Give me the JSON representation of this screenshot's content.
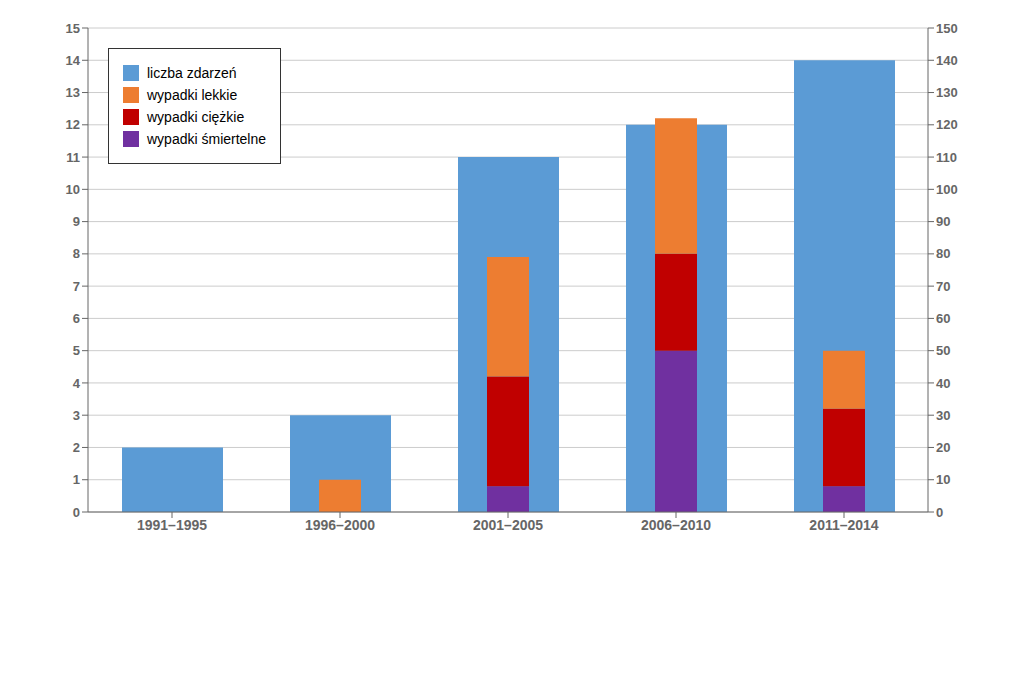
{
  "chart_data": {
    "type": "bar",
    "categories": [
      "1991–1995",
      "1996–2000",
      "2001–2005",
      "2006–2010",
      "2011–2014"
    ],
    "series": [
      {
        "name": "liczba zdarzeń",
        "color": "#5B9BD5",
        "values": [
          2,
          3,
          11,
          12,
          14
        ]
      },
      {
        "name": "wypadki śmiertelne",
        "color": "#7030A0",
        "values": [
          0,
          0,
          8,
          50,
          8
        ],
        "axis": "y2"
      },
      {
        "name": "wypadki ciężkie",
        "color": "#C00000",
        "values": [
          0,
          0,
          34,
          30,
          24
        ],
        "axis": "y2"
      },
      {
        "name": "wypadki lekkie",
        "color": "#ED7D31",
        "values": [
          0,
          10,
          37,
          42,
          18
        ],
        "axis": "y2"
      }
    ],
    "ylim": [
      0,
      15
    ],
    "yticks": [
      0,
      1,
      2,
      3,
      4,
      5,
      6,
      7,
      8,
      9,
      10,
      11,
      12,
      13,
      14,
      15
    ],
    "y2lim": [
      0,
      150
    ],
    "y2ticks": [
      0,
      10,
      20,
      30,
      40,
      50,
      60,
      70,
      80,
      90,
      100,
      110,
      120,
      130,
      140,
      150
    ],
    "grid": true,
    "legend": "upper left",
    "stacked": true
  }
}
